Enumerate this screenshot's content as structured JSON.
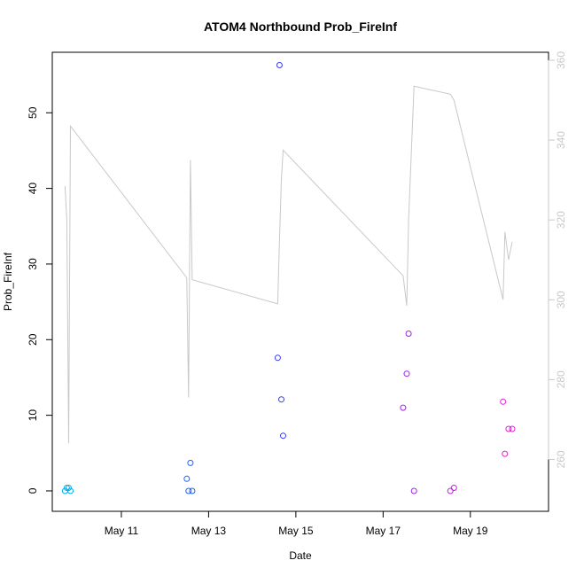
{
  "chart_data": {
    "type": "scatter",
    "title": "ATOM4 Northbound Prob_FireInf",
    "xlabel": "Date",
    "ylabel": "Prob_FireInf",
    "x_axis": {
      "range": [
        "2022-05-09T10:00",
        "2022-05-20T19:00"
      ],
      "ticks": [
        {
          "date": "2022-05-11",
          "label": "May 11"
        },
        {
          "date": "2022-05-13",
          "label": "May 13"
        },
        {
          "date": "2022-05-15",
          "label": "May 15"
        },
        {
          "date": "2022-05-17",
          "label": "May 17"
        },
        {
          "date": "2022-05-19",
          "label": "May 19"
        }
      ]
    },
    "y_axis": {
      "range": [
        -2.7,
        58
      ],
      "ticks": [
        0,
        10,
        20,
        30,
        40,
        50
      ]
    },
    "y2_axis": {
      "range": [
        247,
        362
      ],
      "ticks": [
        260,
        280,
        300,
        320,
        340,
        360
      ],
      "color": "#c8c8c8"
    },
    "grid": false,
    "legend": "none",
    "points": [
      {
        "x": "2022-05-09T17:00",
        "y": 0.0,
        "color": "#00aeef"
      },
      {
        "x": "2022-05-09T18:00",
        "y": 0.4,
        "color": "#00aeef"
      },
      {
        "x": "2022-05-09T19:00",
        "y": 0.4,
        "color": "#00aeef"
      },
      {
        "x": "2022-05-09T20:00",
        "y": 0.0,
        "color": "#00aeef"
      },
      {
        "x": "2022-05-12T12:00",
        "y": 1.6,
        "color": "#1f5fff"
      },
      {
        "x": "2022-05-12T13:00",
        "y": 0.0,
        "color": "#1f5fff"
      },
      {
        "x": "2022-05-12T14:00",
        "y": 3.7,
        "color": "#1f5fff"
      },
      {
        "x": "2022-05-12T15:00",
        "y": 0.0,
        "color": "#1f5fff"
      },
      {
        "x": "2022-05-14T14:00",
        "y": 17.6,
        "color": "#3a3aee"
      },
      {
        "x": "2022-05-14T15:00",
        "y": 56.3,
        "color": "#3a3aee"
      },
      {
        "x": "2022-05-14T16:00",
        "y": 12.1,
        "color": "#3a3aee"
      },
      {
        "x": "2022-05-14T17:00",
        "y": 7.3,
        "color": "#3a3aee"
      },
      {
        "x": "2022-05-17T11:00",
        "y": 11.0,
        "color": "#a020f0"
      },
      {
        "x": "2022-05-17T13:00",
        "y": 15.5,
        "color": "#a020f0"
      },
      {
        "x": "2022-05-17T14:00",
        "y": 20.8,
        "color": "#a020f0"
      },
      {
        "x": "2022-05-17T17:00",
        "y": 0.0,
        "color": "#a020f0"
      },
      {
        "x": "2022-05-18T13:00",
        "y": 0.0,
        "color": "#c020e0"
      },
      {
        "x": "2022-05-18T15:00",
        "y": 0.4,
        "color": "#c020e0"
      },
      {
        "x": "2022-05-19T18:00",
        "y": 11.8,
        "color": "#e020d8"
      },
      {
        "x": "2022-05-19T19:00",
        "y": 4.9,
        "color": "#e020d8"
      },
      {
        "x": "2022-05-19T21:00",
        "y": 8.2,
        "color": "#e020d8"
      },
      {
        "x": "2022-05-19T23:00",
        "y": 8.2,
        "color": "#e020d8"
      }
    ],
    "line_series": {
      "axis": "y2",
      "color": "#c8c8c8",
      "points": [
        {
          "x": "2022-05-09T17:00",
          "y": 328.5
        },
        {
          "x": "2022-05-09T18:00",
          "y": 320
        },
        {
          "x": "2022-05-09T19:00",
          "y": 264
        },
        {
          "x": "2022-05-09T20:00",
          "y": 343.5
        },
        {
          "x": "2022-05-12T12:00",
          "y": 305.5
        },
        {
          "x": "2022-05-12T13:00",
          "y": 275.5
        },
        {
          "x": "2022-05-12T14:00",
          "y": 335
        },
        {
          "x": "2022-05-12T15:00",
          "y": 305
        },
        {
          "x": "2022-05-14T14:00",
          "y": 299
        },
        {
          "x": "2022-05-14T15:00",
          "y": 315
        },
        {
          "x": "2022-05-14T16:00",
          "y": 330
        },
        {
          "x": "2022-05-14T17:00",
          "y": 337.5
        },
        {
          "x": "2022-05-17T11:00",
          "y": 306
        },
        {
          "x": "2022-05-17T13:00",
          "y": 298.5
        },
        {
          "x": "2022-05-17T14:00",
          "y": 320
        },
        {
          "x": "2022-05-17T17:00",
          "y": 353.5
        },
        {
          "x": "2022-05-18T13:00",
          "y": 351.5
        },
        {
          "x": "2022-05-18T15:00",
          "y": 350
        },
        {
          "x": "2022-05-19T18:00",
          "y": 300
        },
        {
          "x": "2022-05-19T19:00",
          "y": 317
        },
        {
          "x": "2022-05-19T21:00",
          "y": 310
        },
        {
          "x": "2022-05-19T23:00",
          "y": 314.5
        }
      ]
    }
  }
}
